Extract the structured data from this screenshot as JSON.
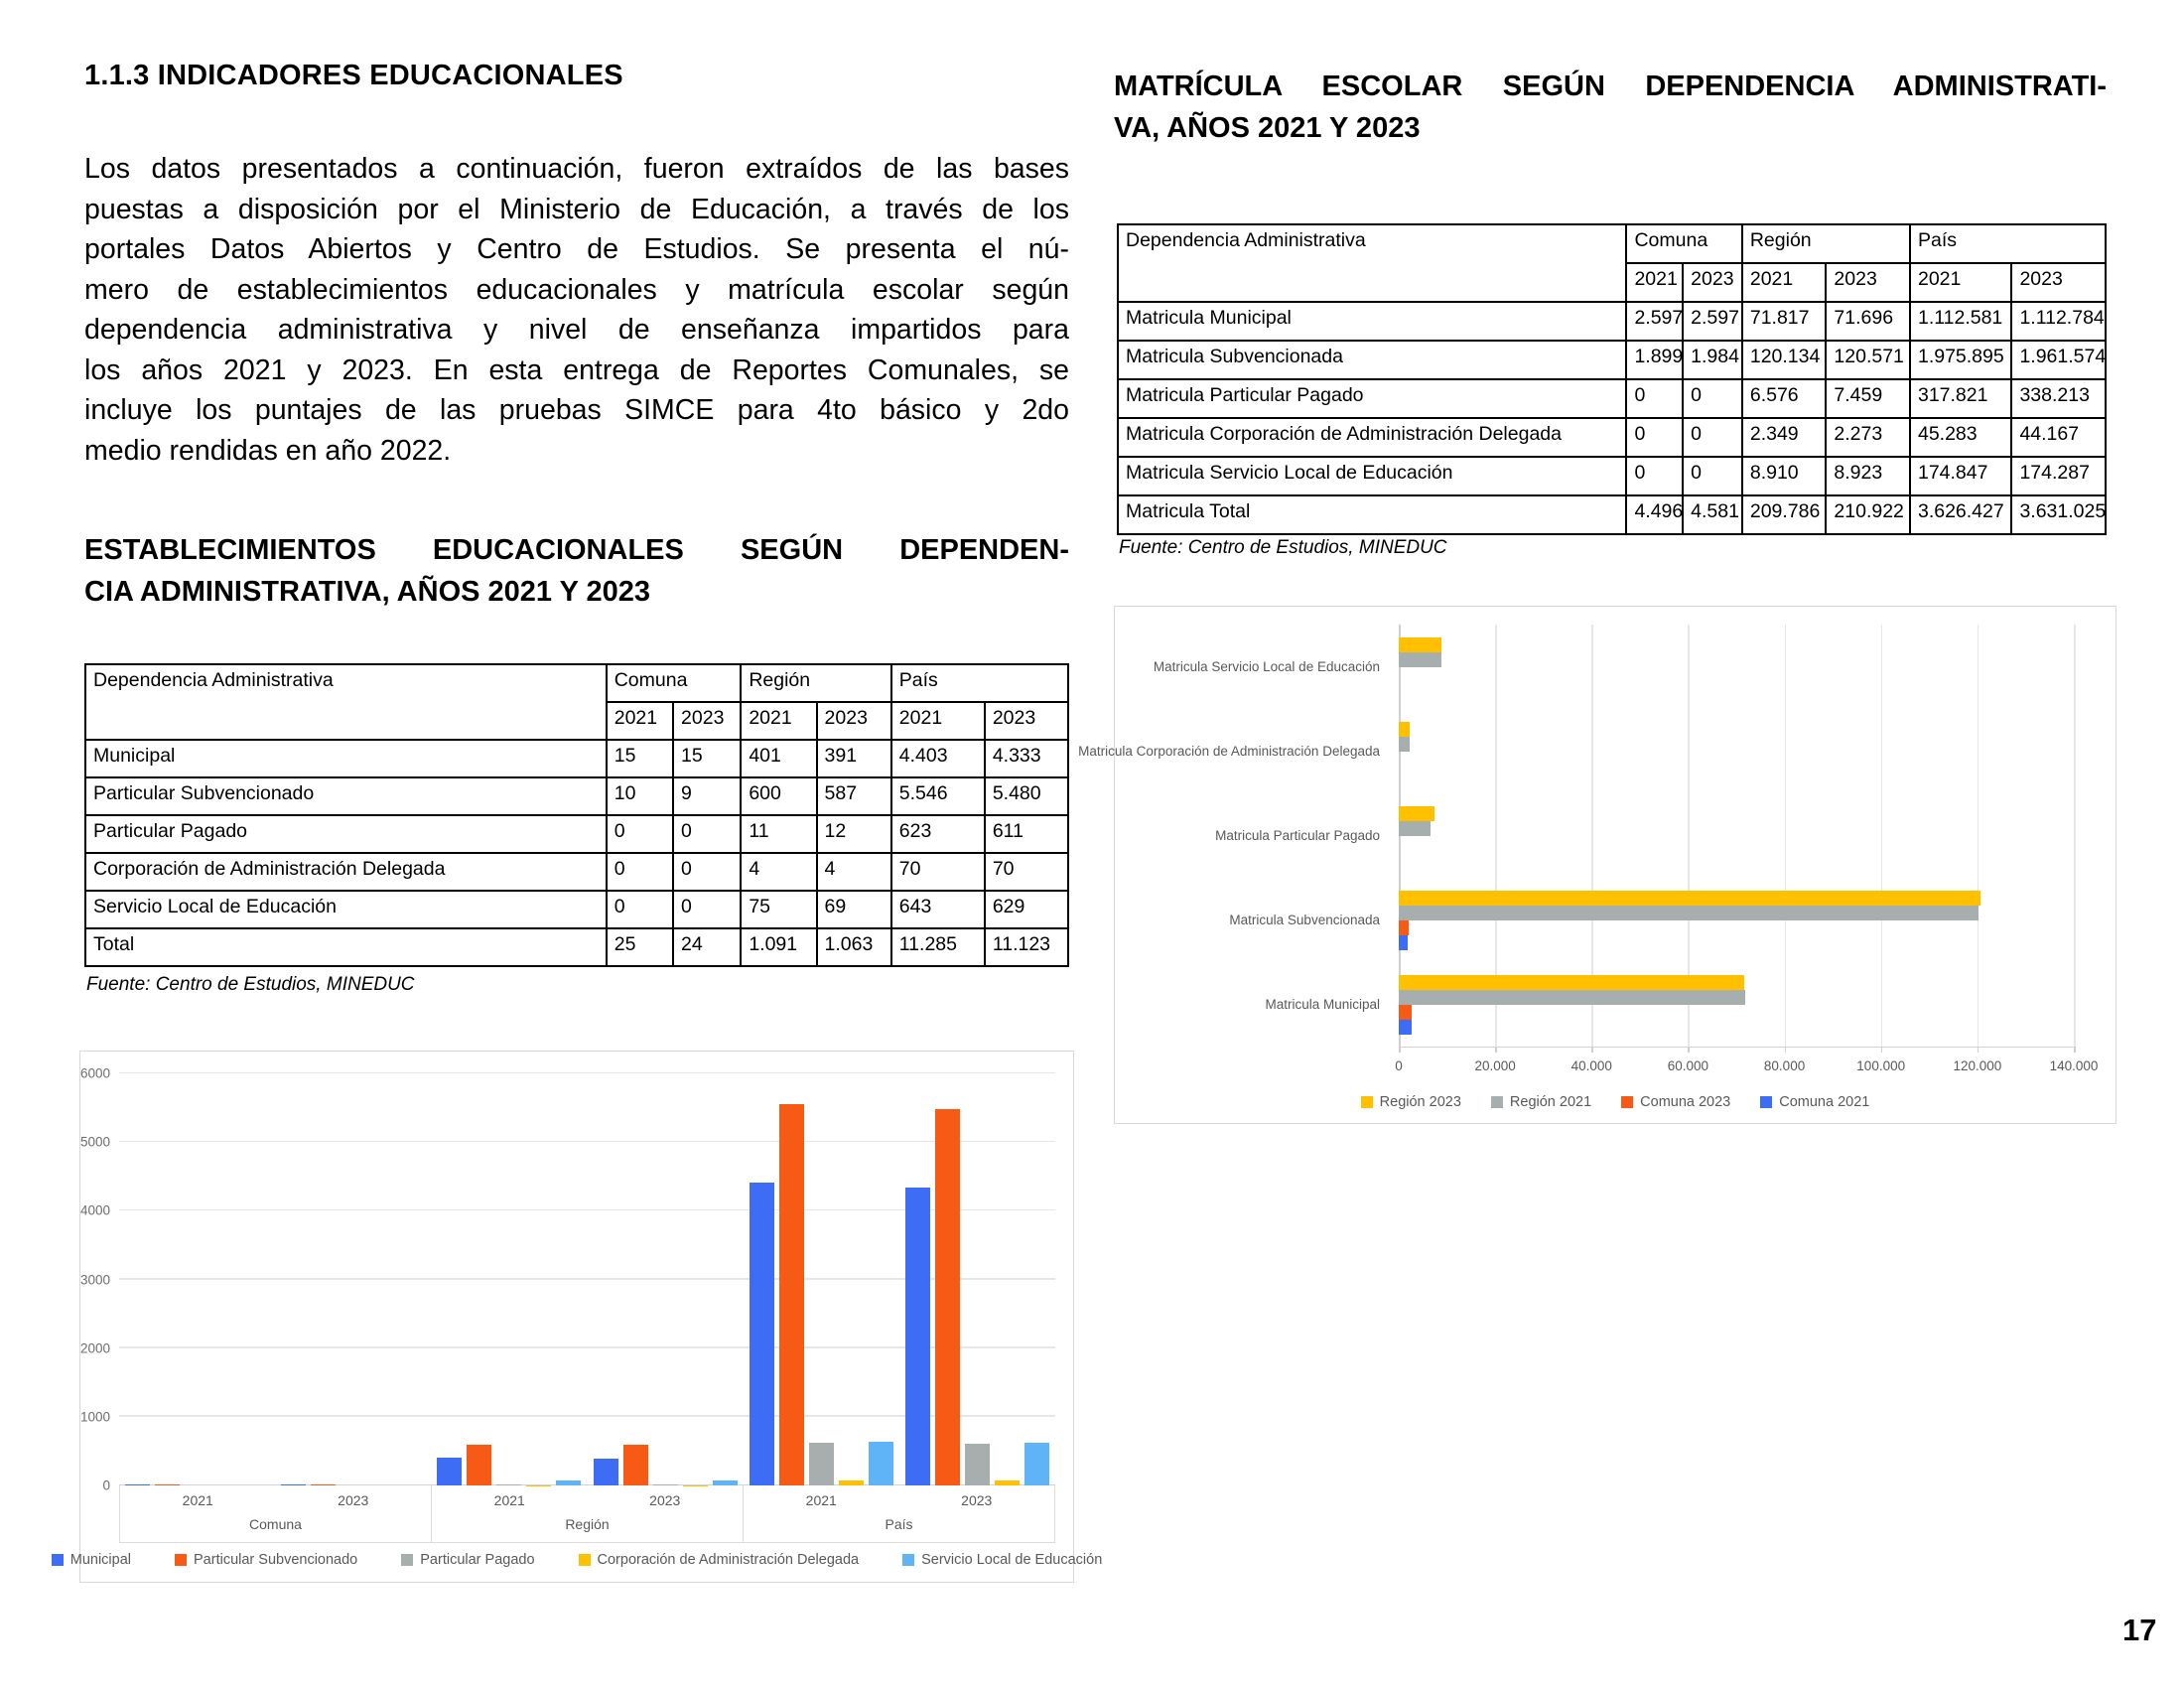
{
  "page": {
    "number": "17"
  },
  "left": {
    "section_title": "1.1.3 INDICADORES EDUCACIONALES",
    "paragraph_lines": [
      "Los datos presentados a continuación, fueron extraídos de las bases",
      "puestas a disposición por el Ministerio de Educación, a través de los",
      "portales Datos Abiertos y Centro de Estudios. Se presenta el nú-",
      "mero de establecimientos educacionales y matrícula escolar según",
      "dependencia administrativa y nivel de enseñanza impartidos para",
      "los años 2021 y 2023. En esta entrega de Reportes Comunales, se",
      "incluye los puntajes de las pruebas SIMCE para 4to básico y 2do",
      "medio rendidas en año 2022."
    ],
    "heading_lines": [
      "ESTABLECIMIENTOS EDUCACIONALES SEGÚN DEPENDEN-",
      "CIA ADMINISTRATIVA, AÑOS 2021 Y 2023"
    ],
    "table": {
      "corner": "Dependencia Administrativa",
      "groups": [
        "Comuna",
        "Región",
        "País"
      ],
      "years": [
        "2021",
        "2023",
        "2021",
        "2023",
        "2021",
        "2023"
      ],
      "rows": [
        [
          "Municipal",
          "15",
          "15",
          "401",
          "391",
          "4.403",
          "4.333"
        ],
        [
          "Particular Subvencionado",
          "10",
          "9",
          "600",
          "587",
          "5.546",
          "5.480"
        ],
        [
          "Particular Pagado",
          "0",
          "0",
          "11",
          "12",
          "623",
          "611"
        ],
        [
          "Corporación de Administración Delegada",
          "0",
          "0",
          "4",
          "4",
          "70",
          "70"
        ],
        [
          "Servicio Local de Educación",
          "0",
          "0",
          "75",
          "69",
          "643",
          "629"
        ],
        [
          "Total",
          "25",
          "24",
          "1.091",
          "1.063",
          "11.285",
          "11.123"
        ]
      ]
    },
    "source": "Fuente: Centro de Estudios, MINEDUC"
  },
  "right": {
    "heading_lines": [
      "MATRÍCULA ESCOLAR SEGÚN DEPENDENCIA ADMINISTRATI-",
      "VA, AÑOS 2021 Y 2023"
    ],
    "table": {
      "corner": "Dependencia Administrativa",
      "groups": [
        "Comuna",
        "Región",
        "País"
      ],
      "years": [
        "2021",
        "2023",
        "2021",
        "2023",
        "2021",
        "2023"
      ],
      "rows": [
        [
          "Matricula Municipal",
          "2.597",
          "2.597",
          "71.817",
          "71.696",
          "1.112.581",
          "1.112.784"
        ],
        [
          "Matricula Subvencionada",
          "1.899",
          "1.984",
          "120.134",
          "120.571",
          "1.975.895",
          "1.961.574"
        ],
        [
          "Matricula Particular Pagado",
          "0",
          "0",
          "6.576",
          "7.459",
          "317.821",
          "338.213"
        ],
        [
          "Matricula Corporación de Administración Delegada",
          "0",
          "0",
          "2.349",
          "2.273",
          "45.283",
          "44.167"
        ],
        [
          "Matricula Servicio Local de Educación",
          "0",
          "0",
          "8.910",
          "8.923",
          "174.847",
          "174.287"
        ],
        [
          "Matricula Total",
          "4.496",
          "4.581",
          "209.786",
          "210.922",
          "3.626.427",
          "3.631.025"
        ]
      ]
    },
    "source": "Fuente: Centro de Estudios, MINEDUC"
  },
  "chart_data": [
    {
      "id": "establecimientos-por-dependencia",
      "type": "bar",
      "orientation": "vertical",
      "title": "",
      "group_labels": [
        "Comuna",
        "Región",
        "País"
      ],
      "category_labels": [
        "2021",
        "2023",
        "2021",
        "2023",
        "2021",
        "2023"
      ],
      "series": [
        {
          "name": "Municipal",
          "color": "#3E6DF5",
          "values": [
            15,
            15,
            401,
            391,
            4403,
            4333
          ]
        },
        {
          "name": "Particular Subvencionado",
          "color": "#F75A14",
          "values": [
            10,
            9,
            600,
            587,
            5546,
            5480
          ]
        },
        {
          "name": "Particular Pagado",
          "color": "#A6AFAD",
          "values": [
            0,
            0,
            11,
            12,
            623,
            611
          ]
        },
        {
          "name": "Corporación de Administración Delegada",
          "color": "#FFC000",
          "values": [
            0,
            0,
            4,
            4,
            70,
            70
          ]
        },
        {
          "name": "Servicio Local de Educación",
          "color": "#5FB4F8",
          "values": [
            0,
            0,
            75,
            69,
            643,
            629
          ]
        }
      ],
      "ylim": [
        0,
        6000
      ],
      "ytick_labels": [
        "0",
        "1000",
        "2000",
        "3000",
        "4000",
        "5000",
        "6000"
      ],
      "grid": "horizontal",
      "legend_position": "bottom"
    },
    {
      "id": "matricula-por-dependencia",
      "type": "bar",
      "orientation": "horizontal",
      "title": "",
      "categories_top_to_bottom": [
        "Matricula Servicio Local de Educación",
        "Matricula Corporación de Administración Delegada",
        "Matricula Particular Pagado",
        "Matricula Subvencionada",
        "Matricula Municipal"
      ],
      "series": [
        {
          "name": "Región 2023",
          "color": "#FFC000",
          "values": [
            8923,
            2273,
            7459,
            120571,
            71696
          ]
        },
        {
          "name": "Región 2021",
          "color": "#A6AFAD",
          "values": [
            8910,
            2349,
            6576,
            120134,
            71817
          ]
        },
        {
          "name": "Comuna 2023",
          "color": "#F75A14",
          "values": [
            0,
            0,
            0,
            1984,
            2597
          ]
        },
        {
          "name": "Comuna 2021",
          "color": "#3E6DF5",
          "values": [
            0,
            0,
            0,
            1899,
            2597
          ]
        }
      ],
      "xlim": [
        0,
        140000
      ],
      "xtick_labels": [
        "0",
        "20.000",
        "40.000",
        "60.000",
        "80.000",
        "100.000",
        "120.000",
        "140.000"
      ],
      "grid": "vertical",
      "legend_position": "bottom"
    }
  ]
}
